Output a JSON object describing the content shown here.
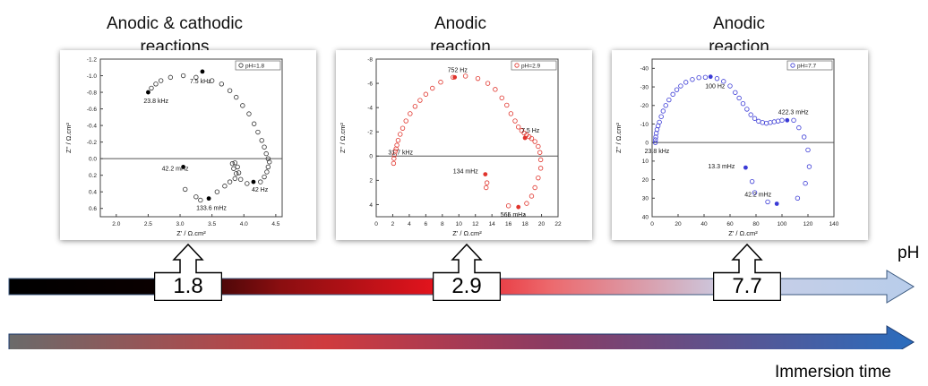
{
  "headings": [
    {
      "line1": "Anodic & cathodic",
      "line2": "reactions"
    },
    {
      "line1": "Anodic",
      "line2": "reaction"
    },
    {
      "line1": "Anodic",
      "line2": "reaction"
    }
  ],
  "chart_data": [
    {
      "type": "scatter",
      "legend": "pH=1.8",
      "legend_position": "top-right",
      "xlabel": "Z' / Ω.cm²",
      "ylabel": "Z'' / Ω.cm²",
      "xlim": [
        1.75,
        4.6
      ],
      "ylim": [
        0.7,
        -1.2
      ],
      "xticks": [
        2.0,
        2.5,
        3.0,
        3.5,
        4.0,
        4.5
      ],
      "xtick_labels": [
        "2.0",
        "2.5",
        "3.0",
        "3.5",
        "4.0",
        "4.5"
      ],
      "yticks": [
        -1.2,
        -1.0,
        -0.8,
        -0.6,
        -0.4,
        -0.2,
        0.0,
        0.2,
        0.4,
        0.6
      ],
      "ytick_labels": [
        "-1.2",
        "-1.0",
        "-0.8",
        "-0.6",
        "-0.4",
        "-0.2",
        "0.0",
        "0.2",
        "0.4",
        "0.6"
      ],
      "color": "#333333",
      "open_points": [
        [
          2.55,
          -0.85
        ],
        [
          2.62,
          -0.9
        ],
        [
          2.7,
          -0.94
        ],
        [
          2.85,
          -0.98
        ],
        [
          3.05,
          -1.0
        ],
        [
          3.25,
          -0.98
        ],
        [
          3.5,
          -0.94
        ],
        [
          3.65,
          -0.9
        ],
        [
          3.78,
          -0.82
        ],
        [
          3.88,
          -0.74
        ],
        [
          3.98,
          -0.64
        ],
        [
          4.08,
          -0.54
        ],
        [
          4.16,
          -0.42
        ],
        [
          4.22,
          -0.32
        ],
        [
          4.28,
          -0.22
        ],
        [
          4.32,
          -0.14
        ],
        [
          4.35,
          -0.06
        ],
        [
          4.38,
          0.0
        ],
        [
          4.4,
          0.04
        ],
        [
          4.38,
          0.1
        ],
        [
          4.36,
          0.16
        ],
        [
          4.32,
          0.22
        ],
        [
          4.26,
          0.28
        ],
        [
          4.05,
          0.3
        ],
        [
          3.95,
          0.25
        ],
        [
          3.88,
          0.18
        ],
        [
          3.84,
          0.12
        ],
        [
          3.82,
          0.06
        ],
        [
          3.86,
          0.05
        ],
        [
          3.9,
          0.1
        ],
        [
          3.92,
          0.17
        ],
        [
          3.86,
          0.24
        ],
        [
          3.78,
          0.28
        ],
        [
          3.7,
          0.33
        ],
        [
          3.58,
          0.4
        ],
        [
          3.25,
          0.46
        ],
        [
          3.08,
          0.37
        ],
        [
          3.32,
          0.5
        ]
      ],
      "highlighted_points": [
        {
          "x": 2.5,
          "y": -0.8,
          "label": "23.8 kHz"
        },
        {
          "x": 3.35,
          "y": -1.05,
          "label": "7.5 kHz"
        },
        {
          "x": 3.05,
          "y": 0.1,
          "label": "42.2 mHz"
        },
        {
          "x": 3.45,
          "y": 0.48,
          "label": "133.6 mHz"
        },
        {
          "x": 4.15,
          "y": 0.28,
          "label": "42 Hz"
        }
      ]
    },
    {
      "type": "scatter",
      "legend": "pH=2.9",
      "legend_position": "top-right",
      "xlabel": "Z' / Ω.cm²",
      "ylabel": "Z'' / Ω.cm²",
      "xlim": [
        0,
        22
      ],
      "ylim": [
        5,
        -8
      ],
      "xticks": [
        0,
        2,
        4,
        6,
        8,
        10,
        12,
        14,
        16,
        18,
        20,
        22
      ],
      "xtick_labels": [
        "0",
        "2",
        "4",
        "6",
        "8",
        "10",
        "12",
        "14",
        "16",
        "18",
        "20",
        "22"
      ],
      "yticks": [
        -8,
        -6,
        -4,
        -2,
        0,
        2,
        4
      ],
      "ytick_labels": [
        "-8",
        "-6",
        "-4",
        "-2",
        "0",
        "2",
        "4"
      ],
      "color": "#e0342c",
      "open_points": [
        [
          2.1,
          0.6
        ],
        [
          2.15,
          0.2
        ],
        [
          2.2,
          -0.1
        ],
        [
          2.3,
          -0.4
        ],
        [
          2.4,
          -0.6
        ],
        [
          2.5,
          -0.9
        ],
        [
          2.65,
          -1.3
        ],
        [
          2.9,
          -1.8
        ],
        [
          3.2,
          -2.3
        ],
        [
          3.6,
          -2.9
        ],
        [
          4.1,
          -3.5
        ],
        [
          4.7,
          -4.1
        ],
        [
          5.3,
          -4.6
        ],
        [
          6.0,
          -5.1
        ],
        [
          6.8,
          -5.6
        ],
        [
          7.8,
          -6.1
        ],
        [
          9.3,
          -6.5
        ],
        [
          10.8,
          -6.6
        ],
        [
          12.3,
          -6.4
        ],
        [
          13.5,
          -6.0
        ],
        [
          14.4,
          -5.5
        ],
        [
          15.2,
          -4.8
        ],
        [
          15.8,
          -4.2
        ],
        [
          16.3,
          -3.5
        ],
        [
          16.8,
          -2.9
        ],
        [
          17.2,
          -2.4
        ],
        [
          17.6,
          -2.1
        ],
        [
          17.9,
          -1.9
        ],
        [
          18.2,
          -1.75
        ],
        [
          18.5,
          -1.6
        ],
        [
          18.8,
          -1.45
        ],
        [
          19.2,
          -1.2
        ],
        [
          19.6,
          -0.8
        ],
        [
          19.8,
          -0.3
        ],
        [
          19.9,
          0.3
        ],
        [
          19.9,
          1.0
        ],
        [
          19.6,
          1.8
        ],
        [
          19.2,
          2.6
        ],
        [
          18.8,
          3.3
        ],
        [
          18.2,
          3.9
        ],
        [
          16.0,
          4.1
        ],
        [
          13.4,
          2.2
        ],
        [
          13.3,
          2.6
        ]
      ],
      "highlighted_points": [
        {
          "x": 9.5,
          "y": -6.5,
          "label": "752 Hz"
        },
        {
          "x": 18.0,
          "y": -1.5,
          "label": "7.5 Hz"
        },
        {
          "x": 13.2,
          "y": 1.5,
          "label": "134 mHz"
        },
        {
          "x": 17.2,
          "y": 4.2,
          "label": "565 mHz"
        },
        {
          "x": 2.1,
          "y": 0.6,
          "label": "31.7 kHz",
          "marker": "none"
        }
      ]
    },
    {
      "type": "scatter",
      "legend": "pH=7.7",
      "legend_position": "top-right",
      "xlabel": "Z' / Ω.cm²",
      "ylabel": "Z'' / Ω.cm²",
      "xlim": [
        0,
        140
      ],
      "ylim": [
        40,
        -45
      ],
      "xticks": [
        0,
        20,
        40,
        60,
        80,
        100,
        120,
        140
      ],
      "xtick_labels": [
        "0",
        "20",
        "40",
        "60",
        "80",
        "100",
        "120",
        "140"
      ],
      "yticks": [
        -40,
        -30,
        -20,
        -10,
        0,
        10,
        20,
        30,
        40
      ],
      "ytick_labels": [
        "-40",
        "-30",
        "-20",
        "-10",
        "0",
        "10",
        "20",
        "30",
        "40"
      ],
      "color": "#3b3bd6",
      "open_points": [
        [
          2.5,
          0
        ],
        [
          2.6,
          -1.5
        ],
        [
          2.8,
          -3
        ],
        [
          3.2,
          -5
        ],
        [
          3.8,
          -7
        ],
        [
          4.6,
          -9
        ],
        [
          5.6,
          -11
        ],
        [
          7,
          -14
        ],
        [
          8.5,
          -17
        ],
        [
          10.5,
          -20
        ],
        [
          13,
          -23
        ],
        [
          16,
          -26
        ],
        [
          19,
          -28.5
        ],
        [
          22,
          -30.5
        ],
        [
          26,
          -32.5
        ],
        [
          31,
          -34
        ],
        [
          36,
          -35
        ],
        [
          41,
          -35.2
        ],
        [
          50,
          -34.5
        ],
        [
          55,
          -33
        ],
        [
          60,
          -30.5
        ],
        [
          64,
          -27
        ],
        [
          67,
          -24
        ],
        [
          70,
          -21
        ],
        [
          73,
          -18
        ],
        [
          76,
          -15
        ],
        [
          79,
          -13
        ],
        [
          82,
          -11.5
        ],
        [
          85,
          -10.8
        ],
        [
          88,
          -10.4
        ],
        [
          91,
          -10.8
        ],
        [
          94,
          -11.2
        ],
        [
          97,
          -11.6
        ],
        [
          100,
          -12
        ],
        [
          109,
          -12
        ],
        [
          113,
          -8
        ],
        [
          117,
          -3
        ],
        [
          120,
          4
        ],
        [
          121,
          13
        ],
        [
          118,
          22
        ],
        [
          112,
          30
        ],
        [
          79,
          27
        ],
        [
          77,
          21
        ],
        [
          89,
          32
        ]
      ],
      "highlighted_points": [
        {
          "x": 45,
          "y": -35.5,
          "label": "100 Hz"
        },
        {
          "x": 104,
          "y": -12,
          "label": "422.3 mHz"
        },
        {
          "x": 72,
          "y": 13.5,
          "label": "13.3 mHz"
        },
        {
          "x": 96,
          "y": 33,
          "label": "42.2 mHz"
        },
        {
          "x": 2.5,
          "y": 0,
          "label": "23.8 kHz",
          "marker": "none"
        }
      ]
    }
  ],
  "ph_axis": {
    "label": "pH",
    "markers": [
      "1.8",
      "2.9",
      "7.7"
    ]
  },
  "time_axis": {
    "label": "Immersion time"
  }
}
